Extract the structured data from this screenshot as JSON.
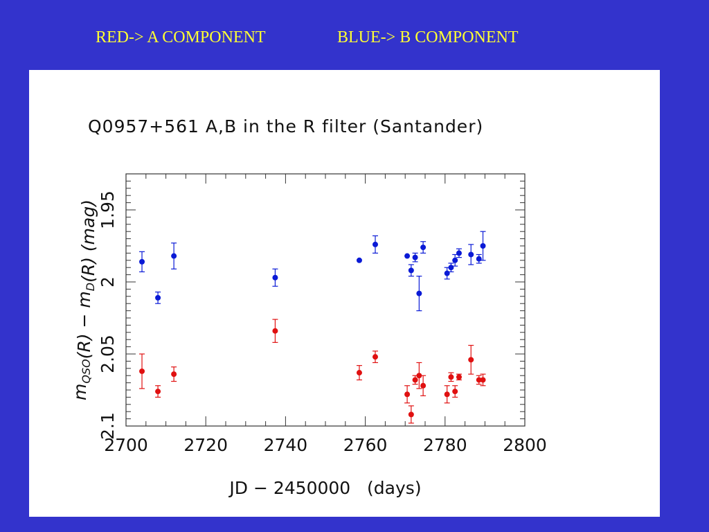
{
  "header": {
    "red_label": "RED-> A COMPONENT",
    "blue_label": "BLUE->  B COMPONENT"
  },
  "colors": {
    "background": "#3333cc",
    "header_text": "#ffff33",
    "series_a": "#e01010",
    "series_b": "#0a1ad6"
  },
  "chart_data": {
    "type": "scatter",
    "title": "Q0957+561 A,B in the R filter (Santander)",
    "xlabel": "JD − 2450000   (days)",
    "ylabel": "m_QSO(R) − m_D(R)   (mag)",
    "xlim": [
      2700,
      2800
    ],
    "ylim": [
      2.1,
      1.925
    ],
    "y_inverted": true,
    "x_ticks": [
      "2700",
      "2720",
      "2740",
      "2760",
      "2780",
      "2800"
    ],
    "y_ticks": [
      "1.95",
      "2",
      "2.05",
      "2.1"
    ],
    "grid": false,
    "series": [
      {
        "color": "#e01010",
        "points": [
          {
            "x": 2704.0,
            "y": 2.062,
            "err": 0.012
          },
          {
            "x": 2708.0,
            "y": 2.076,
            "err": 0.004
          },
          {
            "x": 2712.0,
            "y": 2.064,
            "err": 0.005
          },
          {
            "x": 2737.4,
            "y": 2.034,
            "err": 0.008
          },
          {
            "x": 2758.5,
            "y": 2.063,
            "err": 0.005
          },
          {
            "x": 2762.5,
            "y": 2.052,
            "err": 0.004
          },
          {
            "x": 2770.5,
            "y": 2.078,
            "err": 0.006
          },
          {
            "x": 2771.5,
            "y": 2.092,
            "err": 0.006
          },
          {
            "x": 2772.5,
            "y": 2.068,
            "err": 0.003
          },
          {
            "x": 2773.5,
            "y": 2.065,
            "err": 0.009
          },
          {
            "x": 2774.5,
            "y": 2.072,
            "err": 0.007
          },
          {
            "x": 2780.5,
            "y": 2.078,
            "err": 0.006
          },
          {
            "x": 2781.5,
            "y": 2.066,
            "err": 0.003
          },
          {
            "x": 2782.5,
            "y": 2.076,
            "err": 0.004
          },
          {
            "x": 2783.5,
            "y": 2.066,
            "err": 0.002
          },
          {
            "x": 2786.5,
            "y": 2.054,
            "err": 0.01
          },
          {
            "x": 2788.5,
            "y": 2.068,
            "err": 0.003
          },
          {
            "x": 2789.5,
            "y": 2.068,
            "err": 0.004
          }
        ]
      },
      {
        "color": "#0a1ad6",
        "points": [
          {
            "x": 2704.0,
            "y": 1.986,
            "err": 0.007
          },
          {
            "x": 2708.0,
            "y": 2.011,
            "err": 0.004
          },
          {
            "x": 2712.0,
            "y": 1.982,
            "err": 0.009
          },
          {
            "x": 2737.4,
            "y": 1.997,
            "err": 0.006
          },
          {
            "x": 2758.5,
            "y": 1.985,
            "err": 0.0
          },
          {
            "x": 2762.5,
            "y": 1.974,
            "err": 0.006
          },
          {
            "x": 2770.5,
            "y": 1.982,
            "err": 0.0
          },
          {
            "x": 2771.5,
            "y": 1.992,
            "err": 0.004
          },
          {
            "x": 2772.5,
            "y": 1.983,
            "err": 0.003
          },
          {
            "x": 2773.5,
            "y": 2.008,
            "err": 0.012
          },
          {
            "x": 2774.5,
            "y": 1.976,
            "err": 0.004
          },
          {
            "x": 2780.5,
            "y": 1.994,
            "err": 0.004
          },
          {
            "x": 2781.5,
            "y": 1.99,
            "err": 0.003
          },
          {
            "x": 2782.5,
            "y": 1.985,
            "err": 0.004
          },
          {
            "x": 2783.5,
            "y": 1.98,
            "err": 0.003
          },
          {
            "x": 2786.5,
            "y": 1.981,
            "err": 0.007
          },
          {
            "x": 2788.5,
            "y": 1.984,
            "err": 0.003
          },
          {
            "x": 2789.5,
            "y": 1.975,
            "err": 0.01
          }
        ]
      }
    ]
  }
}
